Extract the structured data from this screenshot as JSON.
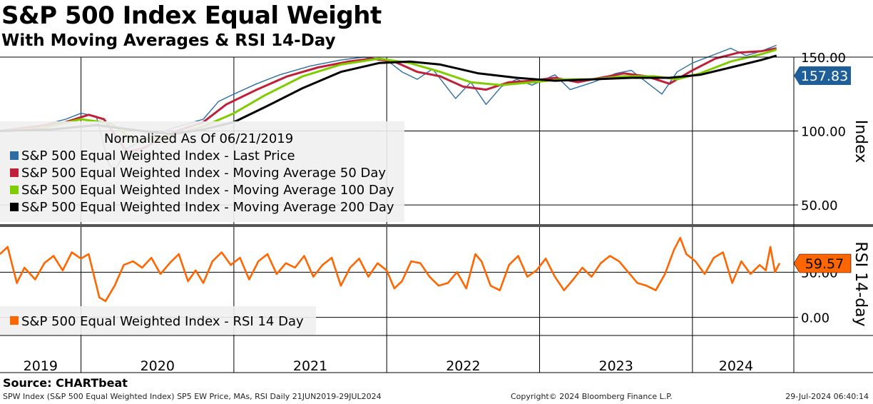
{
  "title": "S&P 500 Index Equal Weight",
  "subtitle": "With Moving Averages & RSI 14-Day",
  "source": "Source: CHARTbeat",
  "footer": {
    "left": "SPW Index (S&P 500 Equal Weighted Index) SP5 EW Price, MAs, RSI  Daily 21JUN2019-29JUL2024",
    "middle": "Copyright© 2024 Bloomberg Finance L.P.",
    "right": "29-Jul-2024 06:40:14"
  },
  "colors": {
    "price": "#2e6da4",
    "ma50": "#c0203a",
    "ma100": "#7fcc00",
    "ma200": "#000000",
    "rsi": "#ff6600",
    "last_price_tag": "#1f5f99",
    "legend_bg": "#efefef"
  },
  "chart_data": [
    {
      "type": "line",
      "panel": "price",
      "ylabel": "Index",
      "ylim": [
        37,
        150
      ],
      "yticks": [
        {
          "value": 50,
          "label": "50.00"
        },
        {
          "value": 100,
          "label": "100.00"
        },
        {
          "value": 150,
          "label": "150.00"
        }
      ],
      "x_labels": [
        "2019",
        "2020",
        "2021",
        "2022",
        "2023",
        "2024"
      ],
      "x_range": [
        2019.47,
        2024.57
      ],
      "year_boundaries": [
        2020,
        2021,
        2022,
        2023,
        2024
      ],
      "legend_header": "Normalized As Of 06/21/2019",
      "last_value_label": "157.83",
      "grid": true,
      "series": [
        {
          "name": "S&P 500 Equal Weighted Index - Last Price",
          "points": [
            [
              2019.47,
              100
            ],
            [
              2019.6,
              102
            ],
            [
              2019.75,
              104
            ],
            [
              2019.9,
              108
            ],
            [
              2020.0,
              112
            ],
            [
              2020.1,
              110
            ],
            [
              2020.18,
              78
            ],
            [
              2020.22,
              73
            ],
            [
              2020.3,
              88
            ],
            [
              2020.45,
              96
            ],
            [
              2020.6,
              102
            ],
            [
              2020.8,
              108
            ],
            [
              2020.9,
              120
            ],
            [
              2021.0,
              125
            ],
            [
              2021.15,
              132
            ],
            [
              2021.3,
              138
            ],
            [
              2021.5,
              144
            ],
            [
              2021.7,
              148
            ],
            [
              2021.85,
              150
            ],
            [
              2022.0,
              148
            ],
            [
              2022.1,
              140
            ],
            [
              2022.2,
              135
            ],
            [
              2022.3,
              142
            ],
            [
              2022.45,
              122
            ],
            [
              2022.55,
              133
            ],
            [
              2022.65,
              118
            ],
            [
              2022.75,
              130
            ],
            [
              2022.85,
              135
            ],
            [
              2022.95,
              131
            ],
            [
              2023.1,
              138
            ],
            [
              2023.2,
              128
            ],
            [
              2023.35,
              133
            ],
            [
              2023.5,
              139
            ],
            [
              2023.6,
              141
            ],
            [
              2023.7,
              133
            ],
            [
              2023.8,
              125
            ],
            [
              2023.9,
              140
            ],
            [
              2024.0,
              146
            ],
            [
              2024.15,
              152
            ],
            [
              2024.25,
              156
            ],
            [
              2024.35,
              151
            ],
            [
              2024.45,
              154
            ],
            [
              2024.55,
              158
            ]
          ]
        },
        {
          "name": "S&P 500 Equal Weighted Index - Moving Average 50 Day",
          "points": [
            [
              2019.47,
              100
            ],
            [
              2019.7,
              103
            ],
            [
              2019.9,
              106
            ],
            [
              2020.05,
              111
            ],
            [
              2020.15,
              108
            ],
            [
              2020.3,
              86
            ],
            [
              2020.4,
              88
            ],
            [
              2020.6,
              99
            ],
            [
              2020.8,
              106
            ],
            [
              2020.95,
              118
            ],
            [
              2021.15,
              128
            ],
            [
              2021.35,
              137
            ],
            [
              2021.55,
              143
            ],
            [
              2021.75,
              147
            ],
            [
              2021.9,
              149
            ],
            [
              2022.05,
              147
            ],
            [
              2022.2,
              140
            ],
            [
              2022.35,
              137
            ],
            [
              2022.5,
              130
            ],
            [
              2022.65,
              128
            ],
            [
              2022.8,
              133
            ],
            [
              2022.95,
              134
            ],
            [
              2023.1,
              136
            ],
            [
              2023.25,
              133
            ],
            [
              2023.4,
              136
            ],
            [
              2023.55,
              139
            ],
            [
              2023.7,
              137
            ],
            [
              2023.85,
              132
            ],
            [
              2024.0,
              141
            ],
            [
              2024.15,
              149
            ],
            [
              2024.3,
              153
            ],
            [
              2024.45,
              154
            ],
            [
              2024.55,
              156
            ]
          ]
        },
        {
          "name": "S&P 500 Equal Weighted Index - Moving Average 100 Day",
          "points": [
            [
              2019.47,
              100
            ],
            [
              2019.75,
              102
            ],
            [
              2020.0,
              108
            ],
            [
              2020.2,
              105
            ],
            [
              2020.35,
              93
            ],
            [
              2020.55,
              96
            ],
            [
              2020.8,
              103
            ],
            [
              2021.0,
              112
            ],
            [
              2021.2,
              124
            ],
            [
              2021.45,
              137
            ],
            [
              2021.7,
              145
            ],
            [
              2021.95,
              149
            ],
            [
              2022.15,
              146
            ],
            [
              2022.35,
              140
            ],
            [
              2022.55,
              133
            ],
            [
              2022.75,
              131
            ],
            [
              2022.95,
              133
            ],
            [
              2023.15,
              135
            ],
            [
              2023.35,
              135
            ],
            [
              2023.55,
              137
            ],
            [
              2023.75,
              137
            ],
            [
              2023.9,
              135
            ],
            [
              2024.05,
              139
            ],
            [
              2024.25,
              147
            ],
            [
              2024.45,
              152
            ],
            [
              2024.55,
              155
            ]
          ]
        },
        {
          "name": "S&P 500 Equal Weighted Index - Moving Average 200 Day",
          "points": [
            [
              2019.47,
              100
            ],
            [
              2019.8,
              101
            ],
            [
              2020.1,
              104
            ],
            [
              2020.4,
              100
            ],
            [
              2020.6,
              98
            ],
            [
              2020.8,
              101
            ],
            [
              2021.0,
              106
            ],
            [
              2021.2,
              116
            ],
            [
              2021.45,
              129
            ],
            [
              2021.7,
              140
            ],
            [
              2021.95,
              146
            ],
            [
              2022.15,
              147
            ],
            [
              2022.35,
              145
            ],
            [
              2022.6,
              139
            ],
            [
              2022.85,
              136
            ],
            [
              2023.1,
              134
            ],
            [
              2023.35,
              135
            ],
            [
              2023.6,
              136
            ],
            [
              2023.85,
              136
            ],
            [
              2024.05,
              138
            ],
            [
              2024.25,
              143
            ],
            [
              2024.45,
              148
            ],
            [
              2024.55,
              151
            ]
          ]
        }
      ]
    },
    {
      "type": "line",
      "panel": "rsi",
      "ylabel": "RSI 14-day",
      "ylim": [
        -20,
        100
      ],
      "yticks": [
        {
          "value": 0,
          "label": "0.00"
        },
        {
          "value": 50,
          "label": "50.00"
        }
      ],
      "last_value_label": "59.57",
      "grid": true,
      "series": [
        {
          "name": "S&P 500 Equal Weighted Index - RSI 14 Day",
          "points": [
            [
              2019.47,
              70
            ],
            [
              2019.52,
              78
            ],
            [
              2019.58,
              38
            ],
            [
              2019.63,
              55
            ],
            [
              2019.7,
              42
            ],
            [
              2019.76,
              60
            ],
            [
              2019.82,
              68
            ],
            [
              2019.88,
              52
            ],
            [
              2019.94,
              72
            ],
            [
              2020.0,
              65
            ],
            [
              2020.05,
              70
            ],
            [
              2020.12,
              22
            ],
            [
              2020.16,
              18
            ],
            [
              2020.22,
              35
            ],
            [
              2020.28,
              58
            ],
            [
              2020.34,
              62
            ],
            [
              2020.4,
              55
            ],
            [
              2020.46,
              66
            ],
            [
              2020.52,
              48
            ],
            [
              2020.58,
              60
            ],
            [
              2020.64,
              70
            ],
            [
              2020.7,
              40
            ],
            [
              2020.75,
              52
            ],
            [
              2020.8,
              38
            ],
            [
              2020.86,
              62
            ],
            [
              2020.92,
              72
            ],
            [
              2020.98,
              58
            ],
            [
              2021.04,
              66
            ],
            [
              2021.1,
              42
            ],
            [
              2021.16,
              62
            ],
            [
              2021.22,
              70
            ],
            [
              2021.28,
              48
            ],
            [
              2021.34,
              60
            ],
            [
              2021.4,
              55
            ],
            [
              2021.46,
              68
            ],
            [
              2021.52,
              45
            ],
            [
              2021.58,
              58
            ],
            [
              2021.64,
              66
            ],
            [
              2021.7,
              35
            ],
            [
              2021.76,
              55
            ],
            [
              2021.82,
              65
            ],
            [
              2021.88,
              45
            ],
            [
              2021.94,
              60
            ],
            [
              2022.0,
              52
            ],
            [
              2022.05,
              32
            ],
            [
              2022.1,
              40
            ],
            [
              2022.16,
              62
            ],
            [
              2022.22,
              60
            ],
            [
              2022.28,
              45
            ],
            [
              2022.34,
              35
            ],
            [
              2022.4,
              38
            ],
            [
              2022.46,
              50
            ],
            [
              2022.52,
              32
            ],
            [
              2022.58,
              70
            ],
            [
              2022.62,
              62
            ],
            [
              2022.68,
              35
            ],
            [
              2022.74,
              30
            ],
            [
              2022.8,
              58
            ],
            [
              2022.86,
              68
            ],
            [
              2022.92,
              45
            ],
            [
              2022.98,
              52
            ],
            [
              2023.04,
              65
            ],
            [
              2023.1,
              45
            ],
            [
              2023.16,
              30
            ],
            [
              2023.22,
              42
            ],
            [
              2023.28,
              55
            ],
            [
              2023.34,
              45
            ],
            [
              2023.4,
              60
            ],
            [
              2023.46,
              68
            ],
            [
              2023.52,
              62
            ],
            [
              2023.58,
              50
            ],
            [
              2023.64,
              38
            ],
            [
              2023.7,
              35
            ],
            [
              2023.76,
              30
            ],
            [
              2023.82,
              48
            ],
            [
              2023.88,
              75
            ],
            [
              2023.92,
              88
            ],
            [
              2023.96,
              70
            ],
            [
              2024.02,
              62
            ],
            [
              2024.08,
              48
            ],
            [
              2024.14,
              66
            ],
            [
              2024.2,
              72
            ],
            [
              2024.26,
              38
            ],
            [
              2024.32,
              62
            ],
            [
              2024.38,
              48
            ],
            [
              2024.44,
              58
            ],
            [
              2024.48,
              52
            ],
            [
              2024.51,
              78
            ],
            [
              2024.54,
              50
            ],
            [
              2024.57,
              60
            ]
          ]
        }
      ]
    }
  ]
}
